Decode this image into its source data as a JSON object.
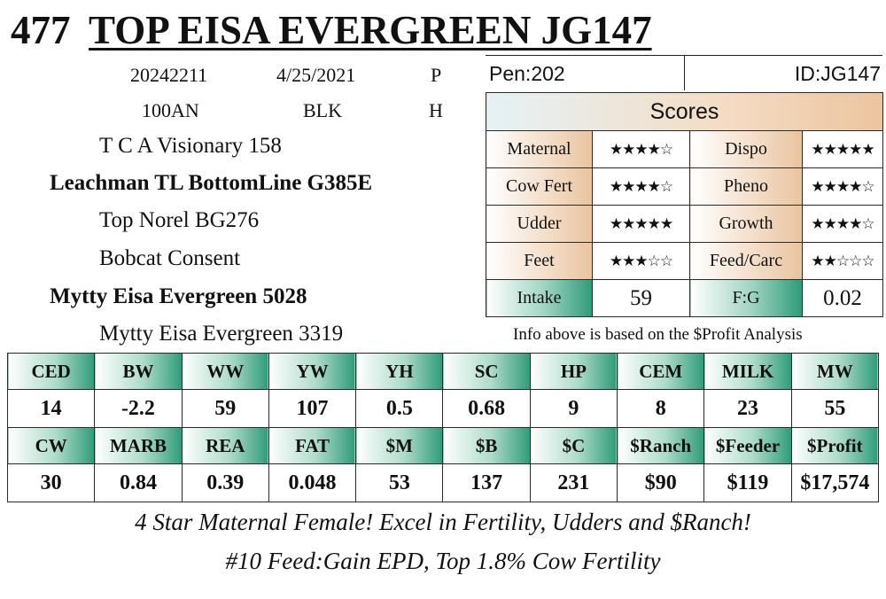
{
  "header": {
    "lot_number": "477",
    "animal_name": "TOP EISA EVERGREEN JG147"
  },
  "info": {
    "registration": "20242211",
    "birth_date": "4/25/2021",
    "sex_code": "P",
    "tattoo": "100AN",
    "color": "BLK",
    "status": "H"
  },
  "pedigree": {
    "sire_sire": "T C A Visionary 158",
    "sire": "Leachman TL BottomLine G385E",
    "sire_dam": "Top Norel BG276",
    "dam_sire": "Bobcat Consent",
    "dam": "Mytty Eisa Evergreen 5028",
    "dam_dam": "Mytty Eisa Evergreen 3319"
  },
  "pen": "Pen:202",
  "animal_id": "ID:JG147",
  "scores": {
    "title": "Scores",
    "rows": [
      {
        "left_label": "Maternal",
        "left_stars": "★★★★☆",
        "right_label": "Dispo",
        "right_stars": "★★★★★"
      },
      {
        "left_label": "Cow Fert",
        "left_stars": "★★★★☆",
        "right_label": "Pheno",
        "right_stars": "★★★★☆"
      },
      {
        "left_label": "Udder",
        "left_stars": "★★★★★",
        "right_label": "Growth",
        "right_stars": "★★★★☆"
      },
      {
        "left_label": "Feet",
        "left_stars": "★★★☆☆",
        "right_label": "Feed/Carc",
        "right_stars": "★★☆☆☆"
      }
    ],
    "star_ratings": {
      "maternal": 4,
      "dispo": 5,
      "cow_fert": 4,
      "pheno": 4,
      "udder": 5,
      "growth": 4,
      "feet": 3,
      "feed_carc": 2
    },
    "intake_label": "Intake",
    "intake_value": "59",
    "fg_label": "F:G",
    "fg_value": "0.02"
  },
  "profit_note": "Info above is based on the $Profit Analysis",
  "epd": {
    "row1_headers": [
      "CED",
      "BW",
      "WW",
      "YW",
      "YH",
      "SC",
      "HP",
      "CEM",
      "MILK",
      "MW"
    ],
    "row1_values": [
      "14",
      "-2.2",
      "59",
      "107",
      "0.5",
      "0.68",
      "9",
      "8",
      "23",
      "55"
    ],
    "row2_headers": [
      "CW",
      "MARB",
      "REA",
      "FAT",
      "$M",
      "$B",
      "$C",
      "$Ranch",
      "$Feeder",
      "$Profit"
    ],
    "row2_values": [
      "30",
      "0.84",
      "0.39",
      "0.048",
      "53",
      "137",
      "231",
      "$90",
      "$119",
      "$17,574"
    ]
  },
  "comments": {
    "line1": "4 Star Maternal Female! Excel in Fertility, Udders and $Ranch!",
    "line2": "#10 Feed:Gain EPD, Top 1.8% Cow Fertility"
  }
}
